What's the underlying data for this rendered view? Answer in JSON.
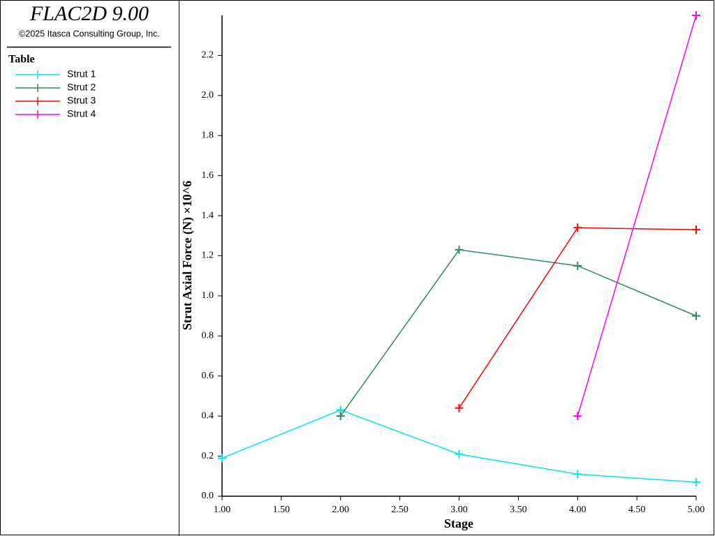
{
  "app": {
    "title": "FLAC2D 9.00",
    "copyright": "©2025 Itasca Consulting Group, Inc."
  },
  "chart_data": {
    "type": "line",
    "legend_title": "Table",
    "x_label": "Stage",
    "y_label": "Strut Axial Force (N) ×10^6",
    "x": [
      1,
      2,
      3,
      4,
      5
    ],
    "series": [
      {
        "name": "Strut 1",
        "color": "#00e8e8",
        "values": [
          0.19,
          0.43,
          0.21,
          0.11,
          0.07
        ]
      },
      {
        "name": "Strut 2",
        "color": "#2e8b57",
        "values": [
          null,
          0.4,
          1.23,
          1.15,
          0.9
        ]
      },
      {
        "name": "Strut 3",
        "color": "#ff0000",
        "values": [
          null,
          null,
          0.44,
          1.34,
          1.33
        ]
      },
      {
        "name": "Strut 4",
        "color": "#ff00ff",
        "values": [
          null,
          null,
          null,
          0.4,
          2.4
        ]
      }
    ],
    "xlim": [
      1,
      5
    ],
    "xticks": [
      {
        "value": 1,
        "label": "1.00"
      },
      {
        "value": 1.5,
        "label": "1.50"
      },
      {
        "value": 2,
        "label": "2.00"
      },
      {
        "value": 2.5,
        "label": "2.50"
      },
      {
        "value": 3,
        "label": "3.00"
      },
      {
        "value": 3.5,
        "label": "3.50"
      },
      {
        "value": 4,
        "label": "4.00"
      },
      {
        "value": 4.5,
        "label": "4.50"
      },
      {
        "value": 5,
        "label": "5.00"
      }
    ],
    "ylim": [
      0,
      2.4
    ],
    "yticks": [
      {
        "value": 0,
        "label": "0.0"
      },
      0.2,
      0.4,
      0.6,
      0.8,
      {
        "value": 1,
        "label": "1.0"
      },
      1.2,
      1.4,
      1.6,
      1.8,
      {
        "value": 2,
        "label": "2.0"
      },
      2.2
    ]
  }
}
